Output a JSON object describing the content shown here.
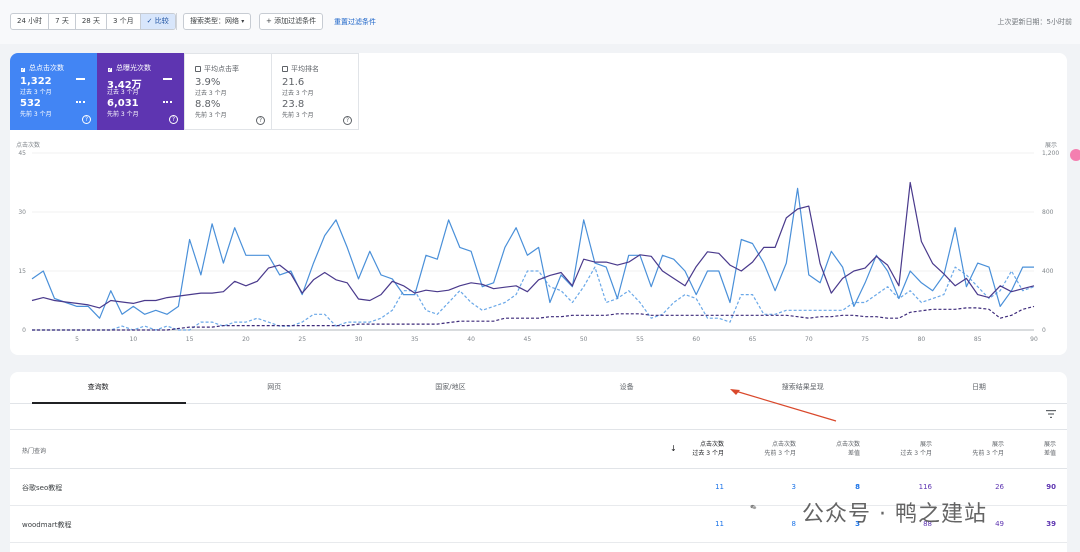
{
  "toolbar": {
    "ranges": [
      "24 小时",
      "7 天",
      "28 天",
      "3 个月",
      "比较"
    ],
    "active_range": "比较",
    "search_type": "搜索类型：网络",
    "add_filter": "添加过滤条件",
    "reset": "重置过滤条件",
    "updated": "上次更新日期：5小时前"
  },
  "metrics": [
    {
      "label": "总点击次数",
      "checked": true,
      "value1": "1,322",
      "sub1": "过去 3 个月",
      "value2": "532",
      "sub2": "先前 3 个月",
      "color": "#4285f4"
    },
    {
      "label": "总曝光次数",
      "checked": true,
      "value1": "3.42万",
      "sub1": "过去 3 个月",
      "value2": "6,031",
      "sub2": "先前 3 个月",
      "color": "#5e35b1"
    },
    {
      "label": "平均点击率",
      "checked": false,
      "value1": "3.9%",
      "sub1": "过去 3 个月",
      "value2": "8.8%",
      "sub2": "先前 3 个月"
    },
    {
      "label": "平均排名",
      "checked": false,
      "value1": "21.6",
      "sub1": "过去 3 个月",
      "value2": "23.8",
      "sub2": "先前 3 个月"
    }
  ],
  "chart_data": {
    "type": "line",
    "ylabel": "点击次数",
    "y2label": "展示",
    "ylim": [
      0,
      45
    ],
    "y2lim": [
      0,
      1200
    ],
    "yticks": [
      "0",
      "15",
      "30",
      "45"
    ],
    "y2ticks": [
      "0",
      "400",
      "800",
      "1,200"
    ],
    "xticks": [
      "5",
      "10",
      "15",
      "20",
      "25",
      "30",
      "35",
      "40",
      "45",
      "50",
      "55",
      "60",
      "65",
      "70",
      "75",
      "80",
      "85",
      "90"
    ],
    "x": [
      1,
      2,
      3,
      4,
      5,
      6,
      7,
      8,
      9,
      10,
      11,
      12,
      13,
      14,
      15,
      16,
      17,
      18,
      19,
      20,
      21,
      22,
      23,
      24,
      25,
      26,
      27,
      28,
      29,
      30,
      31,
      32,
      33,
      34,
      35,
      36,
      37,
      38,
      39,
      40,
      41,
      42,
      43,
      44,
      45,
      46,
      47,
      48,
      49,
      50,
      51,
      52,
      53,
      54,
      55,
      56,
      57,
      58,
      59,
      60,
      61,
      62,
      63,
      64,
      65,
      66,
      67,
      68,
      69,
      70,
      71,
      72,
      73,
      74,
      75,
      76,
      77,
      78,
      79,
      80,
      81,
      82,
      83,
      84,
      85,
      86,
      87,
      88,
      89,
      90
    ],
    "series": [
      {
        "name": "点击次数 过去 3 个月",
        "color": "#4a90d9",
        "dash": false,
        "axis": "left",
        "values": [
          13,
          15,
          8,
          7,
          6,
          6,
          3,
          10,
          4,
          6,
          4,
          5,
          4,
          6,
          23,
          14,
          27,
          17,
          26,
          19,
          19,
          19,
          14,
          15,
          9,
          17,
          24,
          28,
          21,
          13,
          20,
          14,
          13,
          9,
          9,
          19,
          18,
          28,
          21,
          20,
          11,
          12,
          21,
          26,
          19,
          21,
          7,
          14,
          11,
          28,
          17,
          16,
          8,
          19,
          19,
          11,
          19,
          18,
          15,
          9,
          15,
          15,
          7,
          23,
          22,
          17,
          10,
          17,
          36,
          14,
          12,
          20,
          16,
          6,
          12,
          19,
          15,
          8,
          15,
          12,
          10,
          14,
          26,
          11,
          17,
          16,
          6,
          10,
          16,
          16
        ]
      },
      {
        "name": "展示 过去 3 个月",
        "color": "#4a3a8c",
        "dash": false,
        "axis": "right",
        "values": [
          200,
          220,
          200,
          190,
          180,
          170,
          150,
          200,
          190,
          180,
          200,
          200,
          220,
          230,
          240,
          250,
          250,
          260,
          330,
          300,
          330,
          420,
          440,
          380,
          250,
          340,
          390,
          340,
          320,
          210,
          200,
          240,
          330,
          300,
          250,
          270,
          260,
          270,
          300,
          320,
          310,
          280,
          290,
          300,
          260,
          340,
          370,
          390,
          300,
          480,
          460,
          460,
          440,
          460,
          510,
          500,
          400,
          350,
          300,
          430,
          530,
          520,
          440,
          400,
          460,
          560,
          560,
          760,
          820,
          840,
          450,
          250,
          350,
          400,
          420,
          500,
          440,
          300,
          1000,
          600,
          450,
          380,
          300,
          350,
          240,
          220,
          300,
          260,
          280,
          300
        ]
      },
      {
        "name": "点击次数 先前 3 个月",
        "color": "#6aa8e8",
        "dash": true,
        "axis": "left",
        "values": [
          0,
          0,
          0,
          0,
          0,
          0,
          0,
          0,
          1,
          0,
          1,
          0,
          1,
          0,
          0,
          2,
          2,
          1,
          2,
          2,
          3,
          2,
          1,
          1,
          2,
          4,
          4,
          1,
          2,
          2,
          2,
          3,
          5,
          10,
          10,
          5,
          4,
          7,
          10,
          7,
          5,
          6,
          7,
          9,
          15,
          15,
          11,
          10,
          7,
          11,
          16,
          7,
          8,
          10,
          7,
          3,
          4,
          7,
          9,
          8,
          3,
          3,
          2,
          9,
          9,
          4,
          4,
          5,
          5,
          5,
          5,
          5,
          5,
          7,
          7,
          9,
          11,
          8,
          10,
          7,
          8,
          9,
          16,
          14,
          11,
          8,
          10,
          15,
          10,
          11
        ]
      },
      {
        "name": "展示 先前 3 个月",
        "color": "#3d2a7a",
        "dash": true,
        "axis": "right",
        "values": [
          0,
          0,
          0,
          0,
          0,
          0,
          0,
          0,
          0,
          0,
          0,
          0,
          0,
          10,
          20,
          20,
          20,
          30,
          30,
          30,
          30,
          30,
          30,
          30,
          30,
          30,
          30,
          30,
          30,
          40,
          40,
          40,
          40,
          40,
          40,
          40,
          40,
          50,
          60,
          60,
          60,
          60,
          80,
          80,
          80,
          80,
          90,
          90,
          100,
          100,
          100,
          100,
          110,
          110,
          110,
          100,
          100,
          100,
          100,
          100,
          100,
          100,
          100,
          100,
          100,
          100,
          100,
          100,
          90,
          80,
          90,
          90,
          100,
          100,
          90,
          90,
          80,
          80,
          120,
          130,
          140,
          140,
          140,
          150,
          150,
          140,
          80,
          100,
          140,
          160
        ]
      }
    ]
  },
  "table": {
    "tabs": [
      "查询数",
      "网页",
      "国家/地区",
      "设备",
      "搜索结果呈现",
      "日期"
    ],
    "active_tab": "查询数",
    "headers": [
      {
        "main": "热门查询",
        "sub": ""
      },
      {
        "main": "点击次数",
        "sub": "过去 3 个月"
      },
      {
        "main": "点击次数",
        "sub": "先前 3 个月"
      },
      {
        "main": "点击次数",
        "sub": "差值"
      },
      {
        "main": "展示",
        "sub": "过去 3 个月"
      },
      {
        "main": "展示",
        "sub": "先前 3 个月"
      },
      {
        "main": "展示",
        "sub": "差值"
      }
    ],
    "rows": [
      {
        "query": "谷歌seo教程",
        "clicks_now": "11",
        "clicks_prev": "3",
        "clicks_diff": "8",
        "imp_now": "116",
        "imp_prev": "26",
        "imp_diff": "90"
      },
      {
        "query": "woodmart教程",
        "clicks_now": "11",
        "clicks_prev": "8",
        "clicks_diff": "3",
        "imp_now": "88",
        "imp_prev": "49",
        "imp_diff": "39"
      }
    ]
  },
  "watermark": "公众号 · 鸭之建站"
}
